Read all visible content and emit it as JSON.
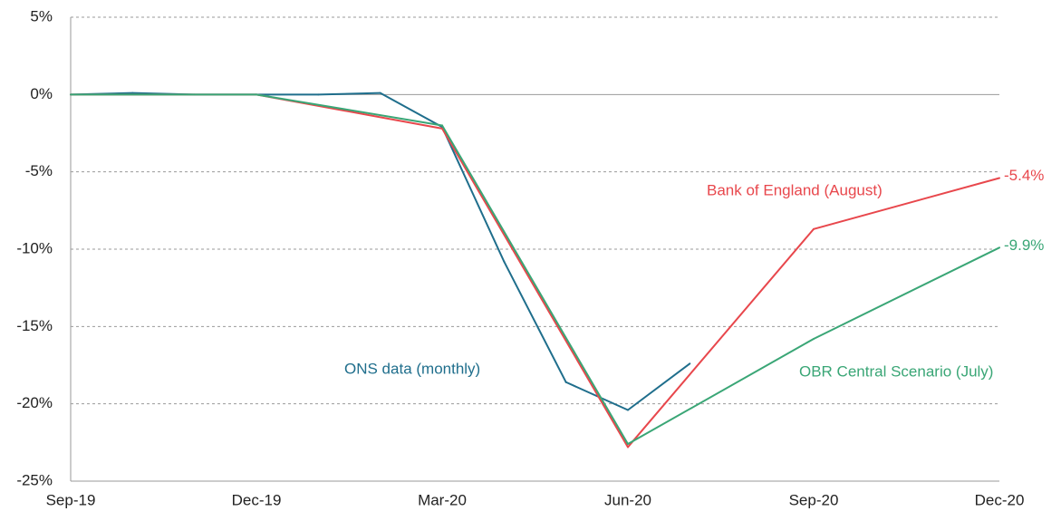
{
  "chart_data": {
    "type": "line",
    "categories": [
      "Sep-19",
      null,
      null,
      "Dec-19",
      null,
      null,
      "Mar-20",
      null,
      null,
      "Jun-20",
      null,
      null,
      "Sep-20",
      null,
      null,
      "Dec-20"
    ],
    "series": [
      {
        "name": "ONS data (monthly)",
        "color": "#1f6e8c",
        "values": [
          0,
          0.1,
          0,
          0,
          0,
          0.1,
          -2.1,
          -10.8,
          -18.6,
          -20.4,
          -17.4,
          null,
          null,
          null,
          null,
          null
        ]
      },
      {
        "name": "Bank of England (August)",
        "color": "#e8474c",
        "values": [
          0,
          null,
          null,
          0,
          null,
          null,
          -2.2,
          null,
          null,
          -22.8,
          null,
          null,
          -8.7,
          null,
          null,
          -5.4
        ],
        "value_labels": [
          null,
          null,
          null,
          null,
          null,
          null,
          null,
          null,
          null,
          null,
          null,
          null,
          null,
          null,
          null,
          "-5.4%"
        ]
      },
      {
        "name": "OBR Central Scenario (July)",
        "color": "#3aa676",
        "values": [
          0,
          null,
          null,
          0,
          null,
          null,
          -2.0,
          null,
          null,
          -22.6,
          null,
          null,
          -15.8,
          null,
          null,
          -9.9
        ],
        "value_labels": [
          null,
          null,
          null,
          null,
          null,
          null,
          null,
          null,
          null,
          null,
          null,
          null,
          null,
          null,
          null,
          "-9.9%"
        ]
      }
    ],
    "ylim": [
      -25,
      5
    ],
    "yticks": [
      {
        "value": 5,
        "label": "5%"
      },
      {
        "value": 0,
        "label": "0%"
      },
      {
        "value": -5,
        "label": "-5%"
      },
      {
        "value": -10,
        "label": "-10%"
      },
      {
        "value": -15,
        "label": "-15%"
      },
      {
        "value": -20,
        "label": "-20%"
      },
      {
        "value": -25,
        "label": "-25%"
      }
    ],
    "grid": true
  }
}
